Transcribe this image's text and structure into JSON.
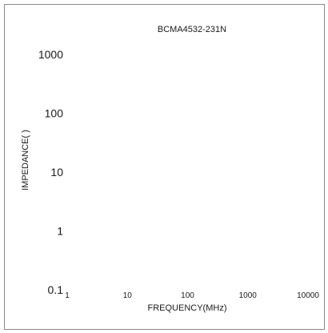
{
  "chart_data": {
    "type": "line",
    "title": "BCMA4532-231N",
    "xlabel": "FREQUENCY(MHz)",
    "ylabel": "IMPEDANCE(  )",
    "x_scale": "log",
    "y_scale": "log",
    "xlim": [
      1,
      10000
    ],
    "ylim": [
      0.1,
      1000
    ],
    "x_ticks": [
      "1",
      "10",
      "100",
      "1000",
      "10000"
    ],
    "y_ticks": [
      "0.1",
      "1",
      "10",
      "100",
      "1000"
    ],
    "grid": false,
    "series": []
  },
  "colors": {
    "text": "#1a1a1a",
    "border": "#8a8a8a",
    "background": "#ffffff"
  }
}
